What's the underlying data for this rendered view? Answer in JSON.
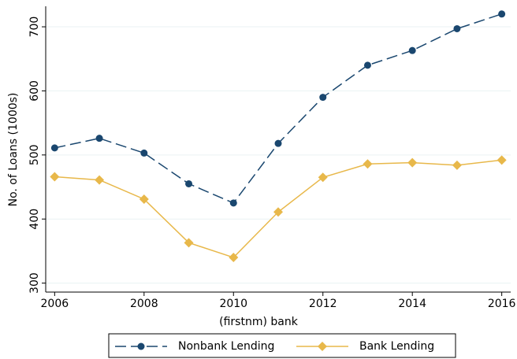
{
  "chart_data": {
    "type": "line",
    "x": [
      2006,
      2007,
      2008,
      2009,
      2010,
      2011,
      2012,
      2013,
      2014,
      2015,
      2016
    ],
    "series": [
      {
        "name": "Nonbank Lending",
        "color": "#1a476f",
        "dash": "dashed",
        "marker": "circle",
        "values": [
          511,
          526,
          503,
          455,
          425,
          518,
          590,
          640,
          663,
          697,
          720
        ]
      },
      {
        "name": "Bank Lending",
        "color": "#e8b84a",
        "dash": "solid",
        "marker": "diamond",
        "values": [
          466,
          461,
          431,
          363,
          340,
          411,
          465,
          486,
          488,
          484,
          492
        ]
      }
    ],
    "xlabel": "(firstnm) bank",
    "ylabel": "No. of Loans (1000s)",
    "xlim": [
      2005.8,
      2016.2
    ],
    "ylim": [
      286,
      732
    ],
    "xticks": [
      2006,
      2008,
      2010,
      2012,
      2014,
      2016
    ],
    "yticks": [
      300,
      400,
      500,
      600,
      700
    ],
    "grid": true,
    "legend": "bottom"
  }
}
